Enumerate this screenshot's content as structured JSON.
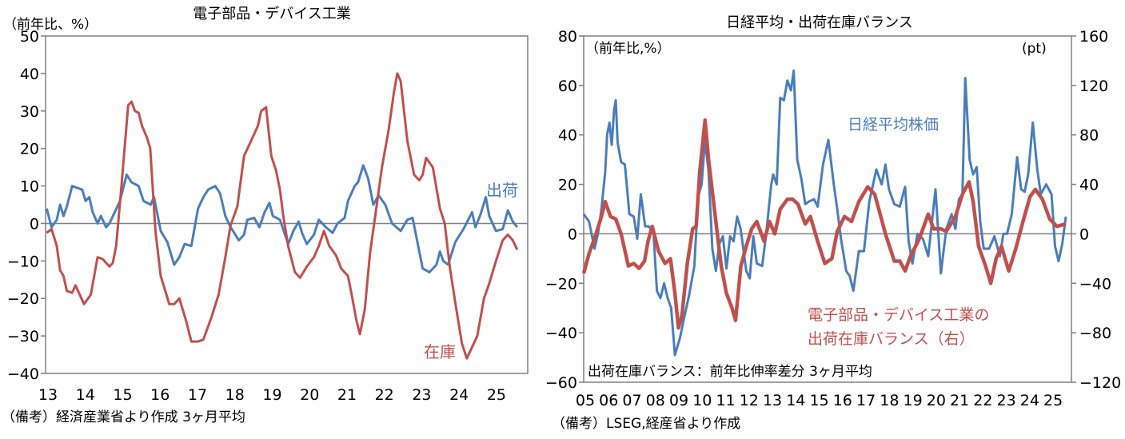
{
  "colors": {
    "blue": "#4a7ebb",
    "red": "#c0504d",
    "axis": "#808080"
  },
  "chart_data": [
    {
      "type": "line",
      "title": "電子部品・デバイス工業",
      "ylabel": "（前年比、%）",
      "ylim": [
        -40,
        50
      ],
      "yticks": [
        50,
        40,
        30,
        20,
        10,
        0,
        -10,
        -20,
        -30,
        -40
      ],
      "xlim": [
        13,
        25.9
      ],
      "xticks": [
        13,
        14,
        15,
        16,
        17,
        18,
        19,
        20,
        21,
        22,
        23,
        24,
        25
      ],
      "xtick_labels": [
        "13",
        "14",
        "15",
        "16",
        "17",
        "18",
        "19",
        "20",
        "21",
        "22",
        "23",
        "24",
        "25"
      ],
      "note": "（備考）経済産業省より作成 3ヶ月平均",
      "series": [
        {
          "name": "出荷",
          "color": "blue",
          "x": [
            13.03,
            13.16,
            13.3,
            13.39,
            13.48,
            13.57,
            13.71,
            13.98,
            14.07,
            14.17,
            14.26,
            14.39,
            14.48,
            14.62,
            14.71,
            14.85,
            14.99,
            15.17,
            15.3,
            15.49,
            15.62,
            15.81,
            15.9,
            16.08,
            16.26,
            16.44,
            16.58,
            16.72,
            16.9,
            17.08,
            17.22,
            17.35,
            17.54,
            17.67,
            17.81,
            17.95,
            18.17,
            18.31,
            18.4,
            18.58,
            18.72,
            18.86,
            18.99,
            19.08,
            19.27,
            19.49,
            19.63,
            19.77,
            19.86,
            19.99,
            20.18,
            20.31,
            20.5,
            20.68,
            20.81,
            21.0,
            21.09,
            21.27,
            21.36,
            21.5,
            21.63,
            21.77,
            21.91,
            22.09,
            22.27,
            22.5,
            22.68,
            22.82,
            23.09,
            23.27,
            23.46,
            23.55,
            23.64,
            23.77,
            23.96,
            24.18,
            24.41,
            24.5,
            24.64,
            24.78,
            24.87,
            25.05,
            25.23,
            25.37,
            25.5,
            25.62
          ],
          "y": [
            4,
            -1,
            1,
            5,
            2,
            4.5,
            10,
            9,
            6,
            7,
            3,
            0,
            2,
            -1,
            0,
            3,
            6,
            13,
            11,
            10,
            6,
            5,
            7,
            -2,
            -5,
            -11,
            -9,
            -5.5,
            -6,
            4,
            7,
            9,
            10,
            8,
            2,
            -1,
            -4.5,
            -3,
            1,
            1.5,
            -1,
            3,
            5.5,
            2,
            1,
            -5.5,
            -2,
            0.5,
            -2.5,
            -5.5,
            -3,
            1,
            -1,
            -2.5,
            0,
            1.5,
            6,
            10,
            11,
            15.5,
            12,
            5,
            7.5,
            5,
            0,
            -2,
            1,
            1.5,
            -12,
            -13,
            -11,
            -7.5,
            -10,
            -11,
            -5,
            -1.5,
            3,
            -1,
            2.5,
            7,
            2,
            -2,
            -1.5,
            3.5,
            0.5,
            -1
          ]
        },
        {
          "name": "在庫",
          "color": "red",
          "x": [
            13.03,
            13.16,
            13.3,
            13.39,
            13.48,
            13.57,
            13.71,
            13.8,
            14.03,
            14.21,
            14.39,
            14.53,
            14.71,
            14.8,
            14.89,
            15.03,
            15.21,
            15.3,
            15.39,
            15.49,
            15.58,
            15.71,
            15.8,
            15.94,
            16.08,
            16.31,
            16.44,
            16.58,
            16.76,
            16.9,
            17.08,
            17.22,
            17.44,
            17.63,
            17.81,
            17.95,
            18.13,
            18.31,
            18.45,
            18.68,
            18.77,
            18.9,
            19.04,
            19.17,
            19.27,
            19.36,
            19.49,
            19.67,
            19.81,
            19.99,
            20.18,
            20.31,
            20.45,
            20.59,
            20.77,
            20.91,
            21.09,
            21.18,
            21.32,
            21.41,
            21.54,
            21.68,
            21.82,
            22.0,
            22.18,
            22.32,
            22.41,
            22.5,
            22.68,
            22.86,
            23.0,
            23.09,
            23.18,
            23.36,
            23.55,
            23.68,
            23.82,
            23.96,
            24.14,
            24.27,
            24.41,
            24.55,
            24.73,
            24.87,
            25.05,
            25.23,
            25.37,
            25.5,
            25.62
          ],
          "y": [
            -2.5,
            -1.5,
            -6,
            -12.5,
            -14,
            -18,
            -18.5,
            -16.5,
            -21.5,
            -19,
            -9,
            -9.5,
            -11.5,
            -10.5,
            -6,
            10,
            31.5,
            32.5,
            30,
            29.5,
            26,
            23,
            20,
            -2,
            -14,
            -21.5,
            -21.5,
            -20,
            -26,
            -31.5,
            -31.5,
            -31,
            -25,
            -19,
            -9,
            -0.5,
            4.5,
            18,
            21,
            26,
            30,
            31,
            18,
            14,
            9,
            2,
            -6,
            -13,
            -14.5,
            -11.5,
            -9,
            -6,
            -2,
            -6,
            -8.5,
            -12,
            -14,
            -18.5,
            -26,
            -29.5,
            -23,
            -8,
            2,
            15,
            25,
            35,
            40,
            38,
            22,
            13,
            11.5,
            13,
            17.5,
            15,
            4,
            0,
            -12,
            -21,
            -32,
            -36,
            -33,
            -30,
            -20,
            -16,
            -10,
            -4.5,
            -3,
            -4.5,
            -7
          ]
        }
      ]
    },
    {
      "type": "line",
      "title": "日経平均・出荷在庫バランス",
      "ylabel": "（前年比,%）",
      "y2label": "(pt)",
      "ylim": [
        -60,
        80
      ],
      "y2lim": [
        -120,
        160
      ],
      "yticks": [
        80,
        60,
        40,
        20,
        0,
        -20,
        -40,
        -60
      ],
      "y2ticks": [
        160,
        120,
        80,
        40,
        0,
        -40,
        -80,
        -120
      ],
      "xlim": [
        5,
        25.85
      ],
      "xticks": [
        5,
        6,
        7,
        8,
        9,
        10,
        11,
        12,
        13,
        14,
        15,
        16,
        17,
        18,
        19,
        20,
        21,
        22,
        23,
        24,
        25
      ],
      "xtick_labels": [
        "05",
        "06",
        "07",
        "08",
        "09",
        "10",
        "11",
        "12",
        "13",
        "14",
        "15",
        "16",
        "17",
        "18",
        "19",
        "20",
        "21",
        "22",
        "23",
        "24",
        "25"
      ],
      "inner_note": "出荷在庫バランス：前年比伸率差分 3ヶ月平均",
      "note": "（備考）LSEG,経産省より作成",
      "series": [
        {
          "name": "日経平均株価",
          "color": "blue",
          "axis": "left",
          "x": [
            5.0,
            5.23,
            5.38,
            5.46,
            5.61,
            5.76,
            5.92,
            6.0,
            6.1,
            6.2,
            6.3,
            6.37,
            6.45,
            6.6,
            6.76,
            6.86,
            6.95,
            7.14,
            7.29,
            7.44,
            7.63,
            7.78,
            7.98,
            8.13,
            8.28,
            8.44,
            8.59,
            8.74,
            8.9,
            9.12,
            9.27,
            9.5,
            9.73,
            9.89,
            10.04,
            10.19,
            10.34,
            10.5,
            10.65,
            10.8,
            10.95,
            11.1,
            11.26,
            11.41,
            11.56,
            11.71,
            11.95,
            12.1,
            12.25,
            12.4,
            12.63,
            12.79,
            13.02,
            13.1,
            13.25,
            13.4,
            13.56,
            13.71,
            13.86,
            13.98,
            14.13,
            14.31,
            14.47,
            14.62,
            14.85,
            15.0,
            15.23,
            15.46,
            15.69,
            15.84,
            16.0,
            16.22,
            16.37,
            16.53,
            16.76,
            16.98,
            17.21,
            17.51,
            17.74,
            17.9,
            18.05,
            18.28,
            18.51,
            18.74,
            18.89,
            19.05,
            19.27,
            19.5,
            19.73,
            20.04,
            20.27,
            20.5,
            20.73,
            20.89,
            21.04,
            21.19,
            21.31,
            21.5,
            21.65,
            21.8,
            21.95,
            22.1,
            22.33,
            22.56,
            22.79,
            22.94,
            23.1,
            23.3,
            23.53,
            23.7,
            23.85,
            24.0,
            24.2,
            24.39,
            24.54,
            24.77,
            25.0,
            25.15,
            25.3,
            25.46,
            25.61
          ],
          "y": [
            8,
            5,
            -2,
            -6,
            0,
            10,
            25,
            40,
            45,
            36,
            50,
            54,
            37,
            29,
            28,
            18,
            8,
            7,
            -2,
            16,
            3,
            3,
            1,
            -23,
            -26,
            -20,
            -26,
            -30,
            -49,
            -42,
            -35,
            -25,
            -13,
            15,
            20,
            38,
            25,
            -6,
            -15,
            -4,
            -1,
            -14,
            -1,
            -3,
            7,
            2,
            -15,
            -18,
            -1,
            -12,
            -13,
            -1,
            20,
            24,
            20,
            55,
            54,
            62,
            58,
            66,
            30,
            22,
            12,
            13,
            14,
            11,
            28,
            38,
            20,
            10,
            -2,
            -15,
            -17,
            -23,
            -7,
            -7,
            13,
            26,
            20,
            28,
            18,
            12,
            11,
            19,
            -3,
            -12,
            0,
            -2,
            -9,
            18,
            -16,
            2,
            8,
            2,
            14,
            16,
            63,
            30,
            24,
            27,
            5,
            -6,
            -6,
            -1,
            -9,
            0,
            0,
            8,
            31,
            18,
            17,
            24,
            45,
            26,
            16,
            20,
            16,
            -5,
            -11,
            -4,
            7
          ]
        },
        {
          "name": "電子部品・デバイス工業の出荷在庫バランス（右）",
          "color": "red",
          "axis": "right",
          "x": [
            5.0,
            5.23,
            5.53,
            5.76,
            5.92,
            6.15,
            6.37,
            6.6,
            6.91,
            7.14,
            7.37,
            7.6,
            7.75,
            7.93,
            8.2,
            8.48,
            8.71,
            8.9,
            9.05,
            9.2,
            9.43,
            9.66,
            9.81,
            9.96,
            10.19,
            10.34,
            10.65,
            10.88,
            11.1,
            11.34,
            11.49,
            11.72,
            11.95,
            12.18,
            12.4,
            12.71,
            12.94,
            13.17,
            13.4,
            13.71,
            13.93,
            14.16,
            14.47,
            14.69,
            15.0,
            15.31,
            15.61,
            15.84,
            16.15,
            16.45,
            16.76,
            17.14,
            17.44,
            17.9,
            18.28,
            18.51,
            18.74,
            18.97,
            19.35,
            19.73,
            19.96,
            20.27,
            20.5,
            20.89,
            21.19,
            21.47,
            21.65,
            21.88,
            22.18,
            22.4,
            22.63,
            22.86,
            23.17,
            23.47,
            23.78,
            24.08,
            24.31,
            24.61,
            24.92,
            25.23,
            25.61
          ],
          "y": [
            -32,
            -16,
            0,
            14,
            26,
            14,
            12,
            0,
            -26,
            -24,
            -28,
            -22,
            -6,
            6,
            -14,
            -24,
            -20,
            -48,
            -76,
            -66,
            -24,
            4,
            6,
            50,
            92,
            60,
            10,
            -26,
            -48,
            -60,
            -70,
            -26,
            -10,
            4,
            10,
            -6,
            10,
            0,
            20,
            28,
            28,
            24,
            8,
            14,
            -6,
            -24,
            -20,
            2,
            14,
            10,
            26,
            38,
            32,
            0,
            -22,
            -22,
            -30,
            -18,
            -4,
            16,
            4,
            4,
            2,
            14,
            32,
            42,
            26,
            -10,
            -26,
            -40,
            -20,
            -10,
            -30,
            -12,
            10,
            30,
            36,
            28,
            12,
            6,
            8
          ]
        }
      ]
    }
  ]
}
